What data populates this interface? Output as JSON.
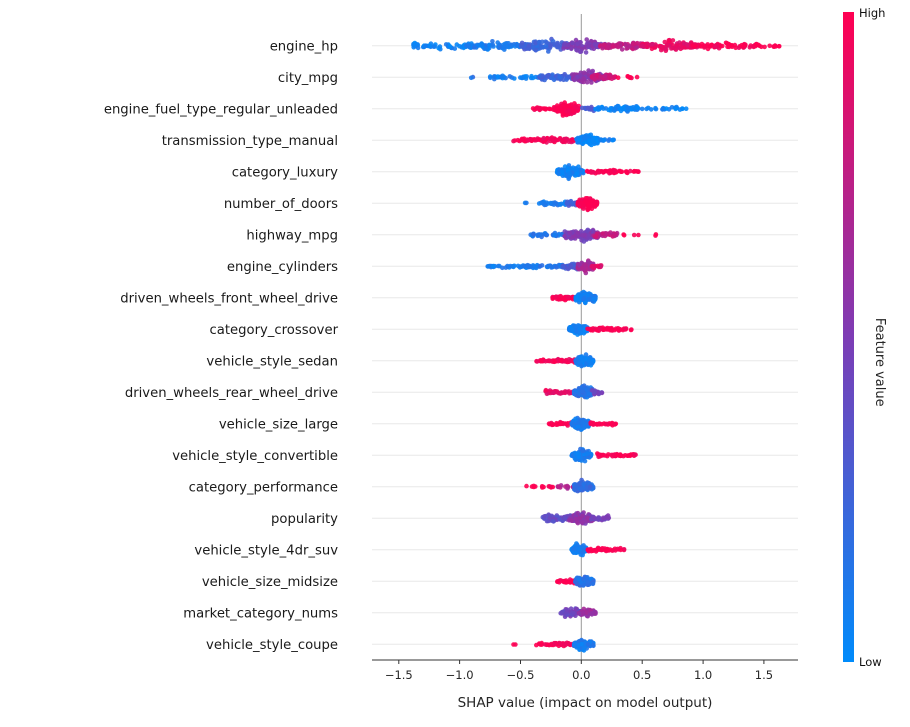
{
  "chart_data": {
    "type": "scatter",
    "variant": "shap-beeswarm-summary",
    "title": "",
    "xlabel": "SHAP value (impact on model output)",
    "xlim": [
      -1.72,
      1.78
    ],
    "xticks": {
      "values": [
        -1.5,
        -1.0,
        -0.5,
        0.0,
        0.5,
        1.0,
        1.5
      ],
      "labels": [
        "−1.5",
        "−1.0",
        "−0.5",
        "0.0",
        "0.5",
        "1.0",
        "1.5"
      ]
    },
    "grid": "horizontal-faint",
    "zero_line": true,
    "legend_position": "right-colorbar",
    "colorbar": {
      "title": "Feature value",
      "high_label": "High",
      "low_label": "Low",
      "high_color": "#ff0052",
      "mid_color": "#7d3cb5",
      "low_color": "#008bfb"
    },
    "features": [
      {
        "name": "engine_hp",
        "shap_range": [
          -1.38,
          1.63
        ],
        "segments": [
          {
            "from": -1.38,
            "to": -0.9,
            "v": 0.05,
            "n": 50,
            "jit": 4
          },
          {
            "from": -0.95,
            "to": -0.45,
            "v": 0.1,
            "n": 90,
            "jit": 6
          },
          {
            "from": -0.5,
            "to": -0.1,
            "v": 0.25,
            "n": 110,
            "jit": 8
          },
          {
            "from": -0.15,
            "to": 0.2,
            "v": 0.5,
            "n": 90,
            "jit": 8
          },
          {
            "from": 0.15,
            "to": 0.55,
            "v": 0.75,
            "n": 80,
            "jit": 6
          },
          {
            "from": 0.5,
            "to": 0.95,
            "v": 0.9,
            "n": 100,
            "jit": 7
          },
          {
            "from": 0.9,
            "to": 1.35,
            "v": 0.97,
            "n": 60,
            "jit": 5
          },
          {
            "from": 1.3,
            "to": 1.63,
            "v": 1.0,
            "n": 25,
            "jit": 3
          }
        ]
      },
      {
        "name": "city_mpg",
        "shap_range": [
          -0.93,
          0.46
        ],
        "segments": [
          {
            "from": -0.93,
            "to": -0.88,
            "v": 0.15,
            "n": 2,
            "jit": 1
          },
          {
            "from": -0.75,
            "to": -0.3,
            "v": 0.08,
            "n": 35,
            "jit": 2.5
          },
          {
            "from": -0.35,
            "to": -0.05,
            "v": 0.25,
            "n": 55,
            "jit": 4
          },
          {
            "from": -0.08,
            "to": 0.18,
            "v": 0.55,
            "n": 120,
            "jit": 8.5
          },
          {
            "from": 0.08,
            "to": 0.28,
            "v": 0.8,
            "n": 50,
            "jit": 5
          },
          {
            "from": 0.3,
            "to": 0.46,
            "v": 1.0,
            "n": 7,
            "jit": 1.5
          }
        ]
      },
      {
        "name": "engine_fuel_type_regular_unleaded",
        "shap_range": [
          -0.44,
          0.88
        ],
        "segments": [
          {
            "from": -0.44,
            "to": -0.2,
            "v": 1.0,
            "n": 20,
            "jit": 2
          },
          {
            "from": -0.22,
            "to": -0.02,
            "v": 1.0,
            "n": 130,
            "jit": 8.5
          },
          {
            "from": 0.0,
            "to": 0.12,
            "v": 0.3,
            "n": 15,
            "jit": 2.5
          },
          {
            "from": 0.1,
            "to": 0.48,
            "v": 0.05,
            "n": 60,
            "jit": 3.5
          },
          {
            "from": 0.45,
            "to": 0.88,
            "v": 0.05,
            "n": 22,
            "jit": 2
          }
        ]
      },
      {
        "name": "transmission_type_manual",
        "shap_range": [
          -0.56,
          0.27
        ],
        "segments": [
          {
            "from": -0.56,
            "to": -0.3,
            "v": 1.0,
            "n": 30,
            "jit": 2.5
          },
          {
            "from": -0.32,
            "to": -0.05,
            "v": 0.95,
            "n": 45,
            "jit": 3.5
          },
          {
            "from": -0.04,
            "to": 0.14,
            "v": 0.05,
            "n": 110,
            "jit": 8
          },
          {
            "from": 0.13,
            "to": 0.27,
            "v": 0.08,
            "n": 12,
            "jit": 2
          }
        ]
      },
      {
        "name": "category_luxury",
        "shap_range": [
          -0.2,
          0.47
        ],
        "segments": [
          {
            "from": -0.2,
            "to": 0.02,
            "v": 0.06,
            "n": 115,
            "jit": 8
          },
          {
            "from": 0.04,
            "to": 0.28,
            "v": 1.0,
            "n": 40,
            "jit": 2.5
          },
          {
            "from": 0.26,
            "to": 0.47,
            "v": 1.0,
            "n": 20,
            "jit": 2
          }
        ]
      },
      {
        "name": "number_of_doors",
        "shap_range": [
          -0.48,
          0.13
        ],
        "segments": [
          {
            "from": -0.48,
            "to": -0.44,
            "v": 0.1,
            "n": 2,
            "jit": 1
          },
          {
            "from": -0.36,
            "to": -0.12,
            "v": 0.1,
            "n": 25,
            "jit": 2.5
          },
          {
            "from": -0.12,
            "to": -0.02,
            "v": 0.3,
            "n": 20,
            "jit": 3
          },
          {
            "from": -0.03,
            "to": 0.13,
            "v": 1.0,
            "n": 115,
            "jit": 8
          }
        ]
      },
      {
        "name": "highway_mpg",
        "shap_range": [
          -0.42,
          0.65
        ],
        "segments": [
          {
            "from": -0.42,
            "to": -0.12,
            "v": 0.12,
            "n": 35,
            "jit": 2.5
          },
          {
            "from": -0.14,
            "to": 0.14,
            "v": 0.5,
            "n": 125,
            "jit": 8.5
          },
          {
            "from": 0.1,
            "to": 0.3,
            "v": 0.75,
            "n": 35,
            "jit": 4
          },
          {
            "from": 0.33,
            "to": 0.37,
            "v": 1.0,
            "n": 2,
            "jit": 1
          },
          {
            "from": 0.43,
            "to": 0.47,
            "v": 1.0,
            "n": 2,
            "jit": 1
          },
          {
            "from": 0.6,
            "to": 0.65,
            "v": 1.0,
            "n": 2,
            "jit": 1
          }
        ]
      },
      {
        "name": "engine_cylinders",
        "shap_range": [
          -0.78,
          0.18
        ],
        "segments": [
          {
            "from": -0.78,
            "to": -0.45,
            "v": 0.08,
            "n": 30,
            "jit": 2
          },
          {
            "from": -0.48,
            "to": -0.15,
            "v": 0.12,
            "n": 45,
            "jit": 2.5
          },
          {
            "from": -0.17,
            "to": -0.02,
            "v": 0.3,
            "n": 40,
            "jit": 4
          },
          {
            "from": -0.03,
            "to": 0.1,
            "v": 0.65,
            "n": 95,
            "jit": 7.5
          },
          {
            "from": 0.08,
            "to": 0.18,
            "v": 0.9,
            "n": 15,
            "jit": 2.5
          }
        ]
      },
      {
        "name": "driven_wheels_front_wheel_drive",
        "shap_range": [
          -0.24,
          0.12
        ],
        "segments": [
          {
            "from": -0.24,
            "to": -0.05,
            "v": 1.0,
            "n": 40,
            "jit": 3
          },
          {
            "from": -0.05,
            "to": 0.12,
            "v": 0.08,
            "n": 115,
            "jit": 8.5
          }
        ]
      },
      {
        "name": "category_crossover",
        "shap_range": [
          -0.1,
          0.42
        ],
        "segments": [
          {
            "from": -0.1,
            "to": 0.05,
            "v": 0.07,
            "n": 115,
            "jit": 8
          },
          {
            "from": 0.05,
            "to": 0.25,
            "v": 1.0,
            "n": 35,
            "jit": 2.5
          },
          {
            "from": 0.24,
            "to": 0.42,
            "v": 1.0,
            "n": 18,
            "jit": 2
          }
        ]
      },
      {
        "name": "vehicle_style_sedan",
        "shap_range": [
          -0.38,
          0.1
        ],
        "segments": [
          {
            "from": -0.38,
            "to": -0.18,
            "v": 1.0,
            "n": 25,
            "jit": 2
          },
          {
            "from": -0.2,
            "to": -0.04,
            "v": 0.95,
            "n": 30,
            "jit": 2.5
          },
          {
            "from": -0.05,
            "to": 0.1,
            "v": 0.08,
            "n": 115,
            "jit": 8
          }
        ]
      },
      {
        "name": "driven_wheels_rear_wheel_drive",
        "shap_range": [
          -0.3,
          0.18
        ],
        "segments": [
          {
            "from": -0.3,
            "to": -0.05,
            "v": 0.92,
            "n": 35,
            "jit": 2.5
          },
          {
            "from": -0.06,
            "to": 0.1,
            "v": 0.15,
            "n": 115,
            "jit": 8.5
          },
          {
            "from": 0.08,
            "to": 0.18,
            "v": 0.45,
            "n": 15,
            "jit": 2.5
          }
        ]
      },
      {
        "name": "vehicle_size_large",
        "shap_range": [
          -0.27,
          0.3
        ],
        "segments": [
          {
            "from": -0.27,
            "to": -0.07,
            "v": 1.0,
            "n": 28,
            "jit": 2
          },
          {
            "from": -0.08,
            "to": 0.06,
            "v": 0.1,
            "n": 105,
            "jit": 8
          },
          {
            "from": 0.07,
            "to": 0.3,
            "v": 1.0,
            "n": 28,
            "jit": 2
          }
        ]
      },
      {
        "name": "vehicle_style_convertible",
        "shap_range": [
          -0.08,
          0.46
        ],
        "segments": [
          {
            "from": -0.08,
            "to": 0.08,
            "v": 0.1,
            "n": 110,
            "jit": 8
          },
          {
            "from": 0.13,
            "to": 0.32,
            "v": 1.0,
            "n": 30,
            "jit": 2.5
          },
          {
            "from": 0.3,
            "to": 0.46,
            "v": 1.0,
            "n": 15,
            "jit": 2
          }
        ]
      },
      {
        "name": "category_performance",
        "shap_range": [
          -0.47,
          0.1
        ],
        "segments": [
          {
            "from": -0.47,
            "to": -0.37,
            "v": 1.0,
            "n": 5,
            "jit": 1.5
          },
          {
            "from": -0.35,
            "to": -0.2,
            "v": 1.0,
            "n": 8,
            "jit": 1.5
          },
          {
            "from": -0.2,
            "to": -0.06,
            "v": 0.7,
            "n": 15,
            "jit": 2.5
          },
          {
            "from": -0.06,
            "to": 0.1,
            "v": 0.2,
            "n": 110,
            "jit": 8
          }
        ]
      },
      {
        "name": "popularity",
        "shap_range": [
          -0.32,
          0.23
        ],
        "segments": [
          {
            "from": -0.32,
            "to": -0.08,
            "v": 0.4,
            "n": 55,
            "jit": 4.5
          },
          {
            "from": -0.1,
            "to": 0.1,
            "v": 0.55,
            "n": 95,
            "jit": 8
          },
          {
            "from": 0.07,
            "to": 0.23,
            "v": 0.45,
            "n": 25,
            "jit": 3.5
          }
        ]
      },
      {
        "name": "vehicle_style_4dr_suv",
        "shap_range": [
          -0.08,
          0.36
        ],
        "segments": [
          {
            "from": -0.08,
            "to": 0.05,
            "v": 0.1,
            "n": 110,
            "jit": 8
          },
          {
            "from": 0.05,
            "to": 0.22,
            "v": 1.0,
            "n": 30,
            "jit": 2.5
          },
          {
            "from": 0.2,
            "to": 0.36,
            "v": 1.0,
            "n": 15,
            "jit": 2
          }
        ]
      },
      {
        "name": "vehicle_size_midsize",
        "shap_range": [
          -0.2,
          0.1
        ],
        "segments": [
          {
            "from": -0.2,
            "to": -0.04,
            "v": 1.0,
            "n": 28,
            "jit": 2.5
          },
          {
            "from": -0.05,
            "to": 0.1,
            "v": 0.15,
            "n": 105,
            "jit": 8
          }
        ]
      },
      {
        "name": "market_category_nums",
        "shap_range": [
          -0.17,
          0.12
        ],
        "segments": [
          {
            "from": -0.17,
            "to": 0.0,
            "v": 0.45,
            "n": 65,
            "jit": 6.5
          },
          {
            "from": -0.02,
            "to": 0.12,
            "v": 0.6,
            "n": 55,
            "jit": 5.5
          }
        ]
      },
      {
        "name": "vehicle_style_coupe",
        "shap_range": [
          -0.57,
          0.1
        ],
        "segments": [
          {
            "from": -0.57,
            "to": -0.53,
            "v": 1.0,
            "n": 2,
            "jit": 1
          },
          {
            "from": -0.38,
            "to": -0.2,
            "v": 1.0,
            "n": 20,
            "jit": 2
          },
          {
            "from": -0.22,
            "to": -0.06,
            "v": 0.95,
            "n": 25,
            "jit": 2.5
          },
          {
            "from": -0.06,
            "to": 0.1,
            "v": 0.1,
            "n": 110,
            "jit": 8
          }
        ]
      }
    ]
  }
}
